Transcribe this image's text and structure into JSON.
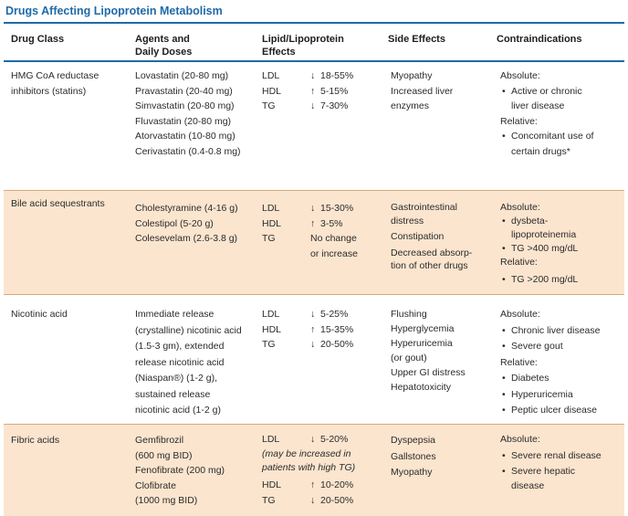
{
  "title": "Drugs Affecting Lipoprotein Metabolism",
  "headers": {
    "drug_class": "Drug Class",
    "agents_1": "Agents and",
    "agents_2": "Daily Doses",
    "lipid_1": "Lipid/Lipoprotein",
    "lipid_2": "Effects",
    "side": "Side Effects",
    "contra": "Contraindications"
  },
  "rows": [
    {
      "class": [
        "HMG CoA reductase",
        "inhibitors (statins)"
      ],
      "agents": [
        "Lovastatin (20-80 mg)",
        "Pravastatin (20-40 mg)",
        "Simvastatin (20-80 mg)",
        "Fluvastatin (20-80 mg)",
        "Atorvastatin (10-80 mg)",
        "Cerivastatin (0.4-0.8 mg)"
      ],
      "effects": [
        {
          "label": "LDL",
          "arrow": "↓",
          "value": "18-55%"
        },
        {
          "label": "HDL",
          "arrow": "↑",
          "value": "5-15%"
        },
        {
          "label": "TG",
          "arrow": "↓",
          "value": "7-30%"
        }
      ],
      "side": [
        "Myopathy",
        "Increased liver",
        "enzymes"
      ],
      "contra": {
        "absolute_label": "Absolute:",
        "absolute": [
          "Active or chronic",
          "liver disease"
        ],
        "relative_label": "Relative:",
        "relative": [
          "Concomitant use of",
          "certain drugs*"
        ]
      }
    },
    {
      "class": [
        "Bile acid sequestrants"
      ],
      "agents": [
        "Cholestyramine (4-16 g)",
        "Colestipol (5-20 g)",
        "Colesevelam (2.6-3.8 g)"
      ],
      "effects": [
        {
          "label": "LDL",
          "arrow": "↓",
          "value": "15-30%"
        },
        {
          "label": "HDL",
          "arrow": "↑",
          "value": "3-5%"
        },
        {
          "label": "TG",
          "arrow": "",
          "value": "No change"
        },
        {
          "label": "",
          "arrow": "",
          "value": "or increase"
        }
      ],
      "side": [
        "Gastrointestinal",
        "distress",
        "Constipation",
        "Decreased absorp-",
        "tion of other drugs"
      ],
      "contra": {
        "absolute_label": "Absolute:",
        "absolute_a": [
          "dysbeta-",
          "lipoproteinemia"
        ],
        "absolute_b": "TG >400 mg/dL",
        "relative_label": "Relative:",
        "relative": "TG >200  mg/dL"
      }
    },
    {
      "class": [
        "Nicotinic acid"
      ],
      "agents": [
        "Immediate release",
        "(crystalline) nicotinic acid",
        "(1.5-3 gm), extended",
        "release nicotinic acid",
        "(Niaspan®) (1-2 g),",
        "sustained release",
        "nicotinic acid (1-2 g)"
      ],
      "effects": [
        {
          "label": "LDL",
          "arrow": "↓",
          "value": "5-25%"
        },
        {
          "label": "HDL",
          "arrow": "↑",
          "value": "15-35%"
        },
        {
          "label": "TG",
          "arrow": "↓",
          "value": "20-50%"
        }
      ],
      "side": [
        "Flushing",
        "Hyperglycemia",
        "Hyperuricemia",
        "(or gout)",
        "Upper GI distress",
        "Hepatotoxicity"
      ],
      "contra": {
        "absolute_label": "Absolute:",
        "absolute": [
          "Chronic liver disease",
          "Severe gout"
        ],
        "relative_label": "Relative:",
        "relative": [
          "Diabetes",
          "Hyperuricemia",
          "Peptic ulcer disease"
        ]
      }
    },
    {
      "class": [
        "Fibric acids"
      ],
      "agents": [
        "Gemfibrozil",
        "(600 mg BID)",
        "Fenofibrate (200 mg)",
        "Clofibrate",
        "(1000 mg BID)"
      ],
      "effects": [
        {
          "label": "LDL",
          "arrow": "↓",
          "value": "5-20%"
        },
        {
          "note": "(may be increased in"
        },
        {
          "note": "patients with high TG)"
        },
        {
          "label": "HDL",
          "arrow": "↑",
          "value": "10-20%"
        },
        {
          "label": "TG",
          "arrow": "↓",
          "value": "20-50%"
        }
      ],
      "side": [
        "Dyspepsia",
        "Gallstones",
        "Myopathy"
      ],
      "contra": {
        "absolute_label": "Absolute:",
        "absolute_a": [
          "Severe renal disease"
        ],
        "absolute_b": [
          "Severe hepatic",
          "disease"
        ]
      }
    }
  ]
}
